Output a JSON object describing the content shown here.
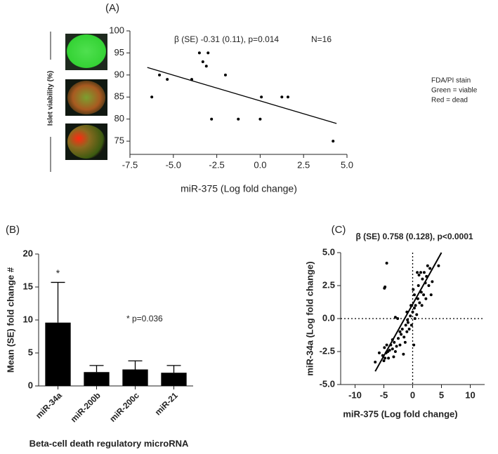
{
  "chart_data": [
    {
      "type": "scatter",
      "panel_label": "(A)",
      "x_label": "miR-375 (Log fold change)",
      "y_label": "Islet viability (%)",
      "annotations": [
        "β (SE) -0.31 (0.11), p=0.014",
        "N=16"
      ],
      "stain_legend": [
        "FDA/PI stain",
        "Green = viable",
        "Red = dead"
      ],
      "x": [
        -6.24,
        -5.8,
        -5.35,
        -3.94,
        -3.5,
        -3.3,
        -3.1,
        -3.0,
        -2.8,
        -2.0,
        -1.26,
        0.07,
        0,
        1.25,
        1.6,
        4.2
      ],
      "y": [
        85,
        90,
        89,
        89,
        95,
        93,
        92,
        95,
        80,
        90,
        80,
        85,
        80,
        85,
        85,
        75
      ],
      "color": "#000000",
      "fit_line": {
        "x": [
          -6.5,
          4.4
        ],
        "y": [
          91.7,
          79
        ]
      },
      "xlim": [
        -7.5,
        5
      ],
      "xticks": [
        -7.5,
        {
          "value": -5,
          "label": "-5.0"
        },
        -2.5,
        {
          "value": 0,
          "label": "0.0"
        },
        2.5,
        {
          "value": 5,
          "label": "5.0"
        }
      ],
      "ylim": [
        72,
        100
      ],
      "yticks": [
        75,
        80,
        85,
        90,
        95,
        100
      ]
    },
    {
      "type": "bar",
      "panel_label": "(B)",
      "x_label": "Beta-cell death regulatory microRNA",
      "y_label": "Mean (SE) fold change #",
      "annotations": [
        "*",
        "* p=0.036"
      ],
      "categories": [
        "miR-34a",
        "miR-200b",
        "miR-200c",
        "miR-21"
      ],
      "values": [
        9.6,
        2.1,
        2.5,
        2.0
      ],
      "errors": [
        6.1,
        1.0,
        1.3,
        1.1
      ],
      "color": "#000000",
      "ylim": [
        0,
        20
      ],
      "yticks": [
        0,
        5,
        10,
        15,
        20
      ]
    },
    {
      "type": "scatter",
      "panel_label": "(C)",
      "title": "β (SE) 0.758 (0.128), p<0.0001",
      "x_label": "miR-375 (Log fold change)",
      "y_label": "miR-34a (Log fold change)",
      "x": [
        -6.5,
        -5,
        -4.8,
        -5.2,
        -4.6,
        -4.3,
        -4.9,
        -4.5,
        -4,
        -3.8,
        -3.5,
        -3.2,
        -3,
        -2.8,
        -2.5,
        -2.2,
        -2,
        -1.8,
        -1.5,
        -1.2,
        -1,
        -0.8,
        -0.6,
        -0.4,
        -0.2,
        0,
        0.2,
        0.3,
        0.5,
        0.7,
        0.9,
        1,
        1.2,
        1.4,
        1.5,
        1.7,
        1.9,
        2,
        2.2,
        2.4,
        2.6,
        2.8,
        3,
        3.2,
        3.4,
        4.5,
        -4.5,
        -4.8,
        -4.9,
        -3,
        -2.6,
        -1.6,
        -1,
        0.1,
        0.3,
        -0.3,
        0.8,
        1.1,
        1.6,
        2.3,
        -3.5,
        -2.2,
        -0.9,
        0.4,
        -5.8,
        -4.2,
        -3.3,
        -1.3
      ],
      "y": [
        -3.3,
        -3.2,
        -3,
        -2.8,
        -2.6,
        -2.5,
        -2.2,
        -2,
        -2.4,
        -2,
        -2.3,
        -1.8,
        -2.5,
        -2.1,
        -1.5,
        -2,
        -1.2,
        -0.8,
        -1.4,
        -0.5,
        -1,
        -0.3,
        -0.8,
        0.2,
        -0.5,
        0.5,
        -2,
        0.8,
        1,
        0.3,
        1.5,
        2.5,
        1.2,
        3.5,
        2,
        3,
        1.8,
        3.5,
        2.7,
        3.2,
        4,
        2.5,
        3.8,
        1.8,
        2.8,
        4,
        4.2,
        2.4,
        2.3,
        0.1,
        0,
        -2.7,
        0.5,
        2.2,
        1.8,
        1,
        3.5,
        3.3,
        1,
        1.5,
        -1.6,
        -1,
        -0.1,
        0,
        -2.6,
        -3,
        -2.9,
        -1.8
      ],
      "color": "#000000",
      "fit_line": {
        "x": [
          -6.5,
          5
        ],
        "y": [
          -4,
          5
        ]
      },
      "reference_lines": {
        "x": 0,
        "y": 0
      },
      "xlim": [
        -12.5,
        12.5
      ],
      "xticks": [
        -10,
        -5,
        0,
        5,
        10
      ],
      "ylim": [
        -5,
        5
      ],
      "yticks": [
        {
          "value": -5,
          "label": "-5.0"
        },
        -2.5,
        {
          "value": 0,
          "label": "0.0"
        },
        2.5,
        {
          "value": 5,
          "label": "5.0"
        }
      ]
    }
  ]
}
